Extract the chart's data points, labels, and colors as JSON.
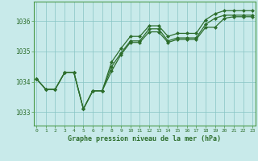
{
  "title": "Graphe pression niveau de la mer (hPa)",
  "background_color": "#c8eaea",
  "plot_bg_color": "#c8eaea",
  "grid_color": "#88c4c4",
  "line_color": "#2d6e2d",
  "marker_color": "#2d6e2d",
  "spine_color": "#4a9a4a",
  "x_ticks": [
    0,
    1,
    2,
    3,
    4,
    5,
    6,
    7,
    8,
    9,
    10,
    11,
    12,
    13,
    14,
    15,
    16,
    17,
    18,
    19,
    20,
    21,
    22,
    23
  ],
  "y_ticks": [
    1033,
    1034,
    1035,
    1036
  ],
  "ylim": [
    1032.55,
    1036.65
  ],
  "xlim": [
    -0.3,
    23.3
  ],
  "series": [
    [
      1034.1,
      1033.75,
      1033.75,
      1034.3,
      1034.3,
      1033.1,
      1033.7,
      1033.7,
      1034.35,
      1034.9,
      1035.3,
      1035.3,
      1035.65,
      1035.65,
      1035.3,
      1035.4,
      1035.4,
      1035.4,
      1035.8,
      1035.8,
      1036.1,
      1036.15,
      1036.15,
      1036.15
    ],
    [
      1034.1,
      1033.75,
      1033.75,
      1034.3,
      1034.3,
      1033.1,
      1033.7,
      1033.7,
      1034.5,
      1034.95,
      1035.35,
      1035.35,
      1035.75,
      1035.75,
      1035.35,
      1035.45,
      1035.45,
      1035.45,
      1035.9,
      1036.1,
      1036.2,
      1036.2,
      1036.2,
      1036.2
    ],
    [
      1034.1,
      1033.75,
      1033.75,
      1034.3,
      1034.3,
      1033.1,
      1033.7,
      1033.7,
      1034.65,
      1035.1,
      1035.5,
      1035.5,
      1035.85,
      1035.85,
      1035.5,
      1035.6,
      1035.6,
      1035.6,
      1036.05,
      1036.25,
      1036.35,
      1036.35,
      1036.35,
      1036.35
    ]
  ]
}
